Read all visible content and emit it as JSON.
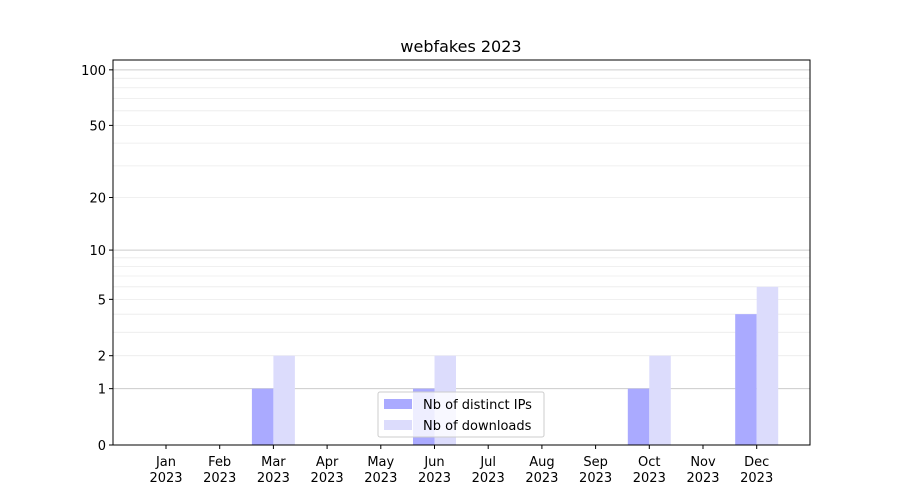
{
  "chart_data": {
    "type": "bar",
    "title": "webfakes 2023",
    "xlabel": "",
    "ylabel": "",
    "yscale": "log(1+y)",
    "ylim": [
      0,
      113
    ],
    "yticks": [
      0,
      1,
      2,
      5,
      10,
      20,
      50,
      100
    ],
    "grid": "horizontal major and minor",
    "legend_position": "lower-center",
    "categories": [
      "Jan\n2023",
      "Feb\n2023",
      "Mar\n2023",
      "Apr\n2023",
      "May\n2023",
      "Jun\n2023",
      "Jul\n2023",
      "Aug\n2023",
      "Sep\n2023",
      "Oct\n2023",
      "Nov\n2023",
      "Dec\n2023"
    ],
    "series": [
      {
        "name": "Nb of distinct IPs",
        "color": "#aaaaff",
        "values": [
          0,
          0,
          1,
          0,
          0,
          1,
          0,
          0,
          0,
          1,
          0,
          4
        ]
      },
      {
        "name": "Nb of downloads",
        "color": "#dcdcfc",
        "values": [
          0,
          0,
          2,
          0,
          0,
          2,
          0,
          0,
          0,
          2,
          0,
          6
        ]
      }
    ]
  }
}
